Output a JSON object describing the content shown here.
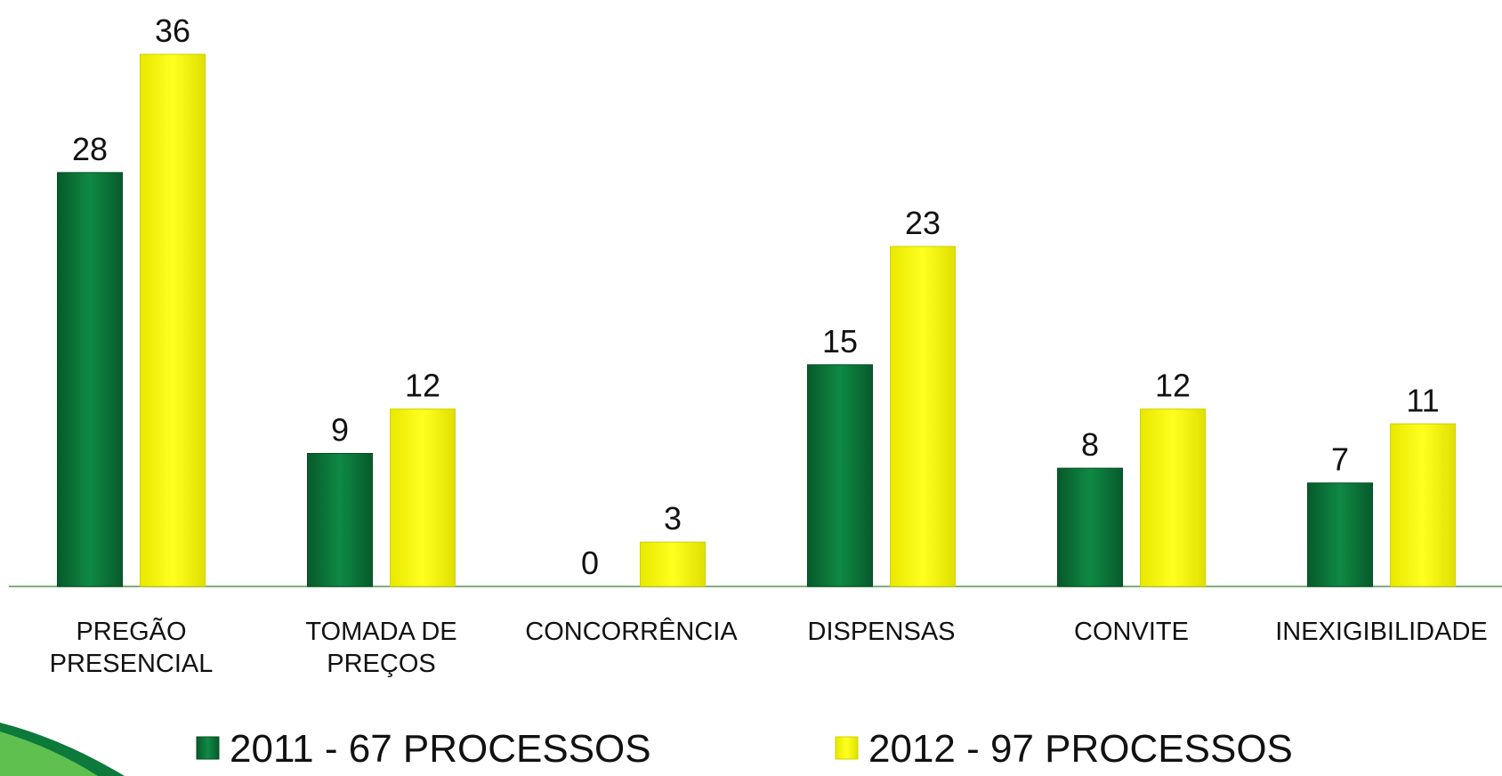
{
  "chart_data": {
    "type": "bar",
    "categories": [
      "PREGÃO\nPRESENCIAL",
      "TOMADA DE\nPREÇOS",
      "CONCORRÊNCIA",
      "DISPENSAS",
      "CONVITE",
      "INEXIGIBILIDADE"
    ],
    "series": [
      {
        "name": "2011 - 67 PROCESSOS",
        "color": "#0b7a3a",
        "values": [
          28,
          9,
          0,
          15,
          8,
          7
        ]
      },
      {
        "name": "2012 - 97 PROCESSOS",
        "color": "#ffff00",
        "values": [
          36,
          12,
          3,
          23,
          12,
          11
        ]
      }
    ],
    "legend": "bottom"
  }
}
